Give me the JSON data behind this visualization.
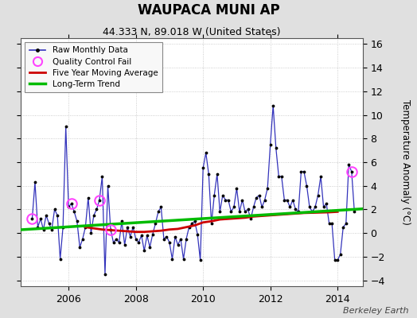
{
  "title": "WAUPACA MUNI AP",
  "subtitle": "44.333 N, 89.018 W (United States)",
  "ylabel": "Temperature Anomaly (°C)",
  "attribution": "Berkeley Earth",
  "ylim": [
    -4.5,
    16.5
  ],
  "yticks": [
    -4,
    -2,
    0,
    2,
    4,
    6,
    8,
    10,
    12,
    14,
    16
  ],
  "xlim_start": 2004.58,
  "xlim_end": 2014.75,
  "xticks": [
    2006,
    2008,
    2010,
    2012,
    2014
  ],
  "fig_bg": "#e0e0e0",
  "plot_bg": "#ffffff",
  "raw_color": "#3333bb",
  "ma_color": "#cc0000",
  "trend_color": "#00bb00",
  "qc_color": "#ff44ff",
  "raw_data": {
    "x": [
      2004.917,
      2005.0,
      2005.083,
      2005.167,
      2005.25,
      2005.333,
      2005.417,
      2005.5,
      2005.583,
      2005.667,
      2005.75,
      2005.833,
      2005.917,
      2006.0,
      2006.083,
      2006.167,
      2006.25,
      2006.333,
      2006.417,
      2006.5,
      2006.583,
      2006.667,
      2006.75,
      2006.833,
      2006.917,
      2007.0,
      2007.083,
      2007.167,
      2007.25,
      2007.333,
      2007.417,
      2007.5,
      2007.583,
      2007.667,
      2007.75,
      2007.833,
      2007.917,
      2008.0,
      2008.083,
      2008.167,
      2008.25,
      2008.333,
      2008.417,
      2008.5,
      2008.583,
      2008.667,
      2008.75,
      2008.833,
      2008.917,
      2009.0,
      2009.083,
      2009.167,
      2009.25,
      2009.333,
      2009.417,
      2009.5,
      2009.583,
      2009.667,
      2009.75,
      2009.833,
      2009.917,
      2010.0,
      2010.083,
      2010.167,
      2010.25,
      2010.333,
      2010.417,
      2010.5,
      2010.583,
      2010.667,
      2010.75,
      2010.833,
      2010.917,
      2011.0,
      2011.083,
      2011.167,
      2011.25,
      2011.333,
      2011.417,
      2011.5,
      2011.583,
      2011.667,
      2011.75,
      2011.833,
      2011.917,
      2012.0,
      2012.083,
      2012.167,
      2012.25,
      2012.333,
      2012.417,
      2012.5,
      2012.583,
      2012.667,
      2012.75,
      2012.833,
      2012.917,
      2013.0,
      2013.083,
      2013.167,
      2013.25,
      2013.333,
      2013.417,
      2013.5,
      2013.583,
      2013.667,
      2013.75,
      2013.833,
      2013.917,
      2014.0,
      2014.083,
      2014.167,
      2014.25,
      2014.333,
      2014.417,
      2014.5
    ],
    "y": [
      1.2,
      4.3,
      0.5,
      1.2,
      0.3,
      1.5,
      0.8,
      0.3,
      2.0,
      1.5,
      -2.2,
      0.5,
      9.0,
      2.2,
      2.5,
      1.8,
      1.0,
      -1.2,
      -0.5,
      0.5,
      3.0,
      0.0,
      1.5,
      2.0,
      2.8,
      4.8,
      -3.5,
      4.0,
      0.3,
      -0.8,
      -0.5,
      -0.8,
      1.0,
      -1.0,
      0.5,
      -0.3,
      0.5,
      -0.5,
      -0.8,
      -0.2,
      -1.5,
      -0.2,
      -1.2,
      -0.1,
      0.8,
      1.8,
      2.2,
      -0.5,
      -0.3,
      -0.8,
      -2.2,
      -0.3,
      -1.0,
      -0.5,
      -2.2,
      -0.5,
      0.5,
      0.8,
      1.0,
      -0.1,
      -2.3,
      5.5,
      6.8,
      5.0,
      0.8,
      3.2,
      5.0,
      1.8,
      3.2,
      2.8,
      2.8,
      1.8,
      2.2,
      3.8,
      1.8,
      2.8,
      1.8,
      2.0,
      1.2,
      2.2,
      3.0,
      3.2,
      2.2,
      2.8,
      3.8,
      7.5,
      10.8,
      7.2,
      4.8,
      4.8,
      2.8,
      2.8,
      2.2,
      2.8,
      2.0,
      1.8,
      5.2,
      5.2,
      4.0,
      2.2,
      1.8,
      2.2,
      3.2,
      4.8,
      2.2,
      2.5,
      0.8,
      0.8,
      -2.3,
      -2.3,
      -1.8,
      0.5,
      0.8,
      5.8,
      5.2,
      1.8
    ]
  },
  "ma_data": {
    "x": [
      2006.5,
      2006.75,
      2007.0,
      2007.25,
      2007.5,
      2007.75,
      2008.0,
      2008.25,
      2008.5,
      2008.75,
      2009.0,
      2009.25,
      2009.5,
      2009.75,
      2010.0,
      2010.25,
      2010.5,
      2010.75,
      2011.0,
      2011.25,
      2011.5,
      2011.75,
      2012.0,
      2012.25,
      2012.5,
      2012.75,
      2013.0,
      2013.25,
      2013.5,
      2013.75,
      2014.0
    ],
    "y": [
      0.5,
      0.4,
      0.3,
      0.25,
      0.2,
      0.15,
      0.1,
      0.1,
      0.15,
      0.2,
      0.3,
      0.35,
      0.5,
      0.65,
      0.9,
      1.0,
      1.15,
      1.2,
      1.25,
      1.3,
      1.4,
      1.45,
      1.5,
      1.55,
      1.6,
      1.65,
      1.7,
      1.72,
      1.74,
      1.76,
      1.8
    ]
  },
  "trend_data": {
    "x": [
      2004.58,
      2014.75
    ],
    "y": [
      0.28,
      2.05
    ]
  },
  "qc_fail": {
    "x": [
      2004.917,
      2006.083,
      2006.917,
      2007.25,
      2014.417
    ],
    "y": [
      1.2,
      2.5,
      2.8,
      0.3,
      5.2
    ]
  }
}
